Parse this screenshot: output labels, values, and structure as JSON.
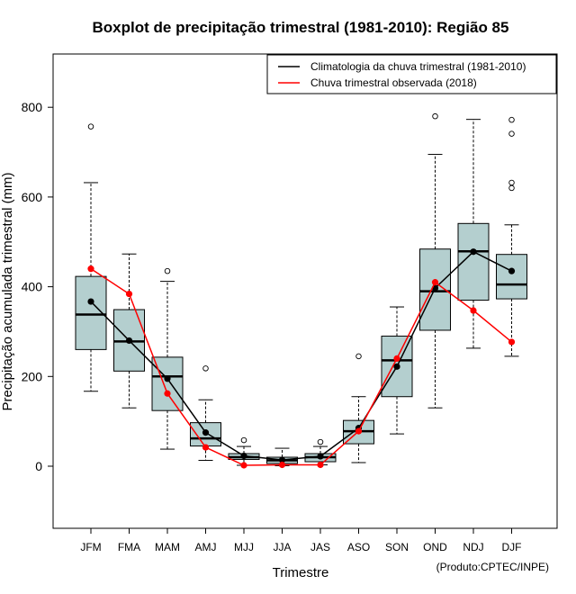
{
  "chart_data": {
    "type": "boxplot",
    "title": "Boxplot de precipitação trimestral (1981-2010): Região 85",
    "xlabel": "Trimestre",
    "ylabel": "Precipitação acumulada trimestral (mm)",
    "ylim": [
      -130,
      920
    ],
    "yticks": [
      0,
      200,
      400,
      600,
      800
    ],
    "credit": "(Produto:CPTEC/INPE)",
    "categories": [
      "JFM",
      "FMA",
      "MAM",
      "AMJ",
      "MJJ",
      "JJA",
      "JAS",
      "ASO",
      "SON",
      "OND",
      "NDJ",
      "DJF"
    ],
    "box_color": "#b4cfcf",
    "boxes": [
      {
        "whisker_low": 167,
        "q1": 260,
        "median": 338,
        "q3": 423,
        "whisker_high": 632,
        "outliers": [
          757
        ]
      },
      {
        "whisker_low": 130,
        "q1": 212,
        "median": 278,
        "q3": 349,
        "whisker_high": 473,
        "outliers": []
      },
      {
        "whisker_low": 38,
        "q1": 124,
        "median": 200,
        "q3": 243,
        "whisker_high": 412,
        "outliers": [
          435
        ]
      },
      {
        "whisker_low": 13,
        "q1": 45,
        "median": 62,
        "q3": 97,
        "whisker_high": 148,
        "outliers": [
          218
        ]
      },
      {
        "whisker_low": 2,
        "q1": 15,
        "median": 20,
        "q3": 28,
        "whisker_high": 44,
        "outliers": [
          58
        ]
      },
      {
        "whisker_low": 1,
        "q1": 6,
        "median": 13,
        "q3": 20,
        "whisker_high": 40,
        "outliers": []
      },
      {
        "whisker_low": 3,
        "q1": 10,
        "median": 20,
        "q3": 28,
        "whisker_high": 44,
        "outliers": [
          54
        ]
      },
      {
        "whisker_low": 8,
        "q1": 50,
        "median": 78,
        "q3": 102,
        "whisker_high": 155,
        "outliers": [
          245
        ]
      },
      {
        "whisker_low": 72,
        "q1": 155,
        "median": 236,
        "q3": 290,
        "whisker_high": 355,
        "outliers": []
      },
      {
        "whisker_low": 130,
        "q1": 303,
        "median": 390,
        "q3": 484,
        "whisker_high": 695,
        "outliers": [
          780
        ]
      },
      {
        "whisker_low": 263,
        "q1": 370,
        "median": 479,
        "q3": 541,
        "whisker_high": 773,
        "outliers": []
      },
      {
        "whisker_low": 245,
        "q1": 373,
        "median": 405,
        "q3": 472,
        "whisker_high": 538,
        "outliers": [
          620,
          632,
          741,
          772
        ]
      }
    ],
    "series": [
      {
        "name": "Climatologia da chuva trimestral (1981-2010)",
        "color": "#000000",
        "values": [
          367,
          280,
          195,
          75,
          23,
          14,
          22,
          85,
          222,
          397,
          478,
          435
        ]
      },
      {
        "name": "Chuva trimestral observada (2018)",
        "color": "#ff0000",
        "values": [
          440,
          384,
          162,
          42,
          2,
          3,
          3,
          78,
          240,
          410,
          347,
          277
        ]
      }
    ],
    "legend_position": "top-right"
  }
}
